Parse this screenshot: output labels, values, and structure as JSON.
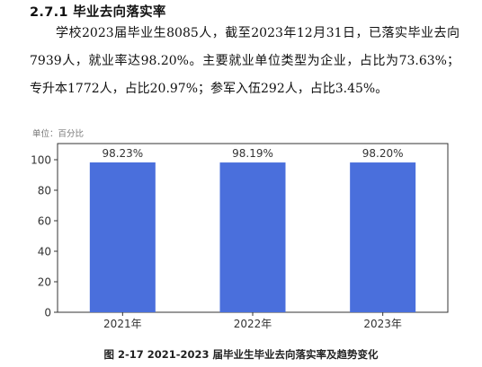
{
  "section": {
    "heading": "2.7.1 毕业去向落实率",
    "paragraph": "学校2023届毕业生8085人，截至2023年12月31日，已落实毕业去向7939人，就业率达98.20%。主要就业单位类型为企业，占比为73.63%；专升本1772人，占比20.97%；参军入伍292人，占比3.45%。"
  },
  "figure": {
    "caption": "图 2-17 2021-2023 届毕业生毕业去向落实率及趋势变化"
  },
  "chart_data": {
    "type": "bar",
    "unit_label": "单位：百分比",
    "categories": [
      "2021年",
      "2022年",
      "2023年"
    ],
    "values": [
      98.23,
      98.19,
      98.2
    ],
    "data_labels": [
      "98.23%",
      "98.19%",
      "98.20%"
    ],
    "ylim": [
      0,
      100
    ],
    "yticks": [
      0,
      20,
      40,
      60,
      80,
      100
    ],
    "bar_color": "#4a6fdc",
    "grid": false,
    "legend": "none"
  }
}
